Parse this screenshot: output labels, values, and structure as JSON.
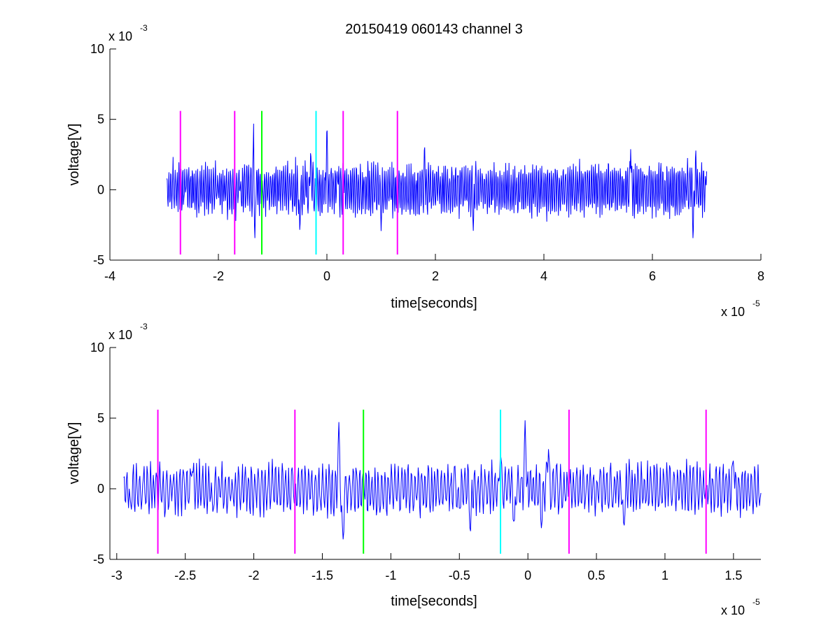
{
  "title": "20150419 060143 channel 3",
  "colors": {
    "signal": "#0000ff",
    "magenta": "#ff00ff",
    "green": "#00ff00",
    "cyan": "#00ffff",
    "axis": "#000000"
  },
  "chart_data": [
    {
      "type": "line",
      "title": "20150419 060143 channel 3",
      "xlabel": "time[seconds]",
      "ylabel": "voltage[V]",
      "x_exponent_label": "x 10",
      "x_exponent": "-5",
      "y_exponent_label": "x 10",
      "y_exponent": "-3",
      "xlim": [
        -4e-05,
        8e-05
      ],
      "ylim": [
        -0.005,
        0.01
      ],
      "xticks": [
        -4e-05,
        -2e-05,
        0,
        2e-05,
        4e-05,
        6e-05,
        8e-05
      ],
      "xtick_labels": [
        "-4",
        "-2",
        "0",
        "2",
        "4",
        "6",
        "8"
      ],
      "yticks": [
        -0.005,
        0,
        0.005,
        0.01
      ],
      "ytick_labels": [
        "-5",
        "0",
        "5",
        "10"
      ],
      "grid": false,
      "series": [
        {
          "color": "#0000ff",
          "x_range": [
            -2.95e-05,
            7e-05
          ],
          "description_points": [
            [
              -2.95e-05,
              0.0008
            ],
            [
              -2.6e-05,
              0.0001
            ],
            [
              -2e-05,
              -0.0002
            ],
            [
              -1.6e-05,
              0.0001
            ],
            [
              -1.35e-05,
              0.0048
            ],
            [
              -1.33e-05,
              -0.0042
            ],
            [
              -1.2e-05,
              -0.0001
            ],
            [
              -5e-06,
              -0.003
            ],
            [
              -3e-06,
              0.003
            ],
            [
              0,
              0.005
            ],
            [
              2e-06,
              0.001
            ],
            [
              3e-06,
              0.002
            ],
            [
              1e-05,
              -0.003
            ],
            [
              1.8e-05,
              0.0034
            ],
            [
              2.7e-05,
              -0.0031
            ],
            [
              5.6e-05,
              0.003
            ],
            [
              6.75e-05,
              -0.0037
            ],
            [
              6.8e-05,
              0.0029
            ],
            [
              7e-05,
              0.0013
            ]
          ]
        }
      ],
      "vlines": [
        {
          "x": -2.7e-05,
          "color": "#ff00ff",
          "ymin": -0.0046,
          "ymax": 0.0056
        },
        {
          "x": -1.7e-05,
          "color": "#ff00ff",
          "ymin": -0.0046,
          "ymax": 0.0056
        },
        {
          "x": -1.2e-05,
          "color": "#00ff00",
          "ymin": -0.0046,
          "ymax": 0.0056
        },
        {
          "x": -2e-06,
          "color": "#00ffff",
          "ymin": -0.0046,
          "ymax": 0.0056
        },
        {
          "x": 3e-06,
          "color": "#ff00ff",
          "ymin": -0.0046,
          "ymax": 0.0056
        },
        {
          "x": 1.3e-05,
          "color": "#ff00ff",
          "ymin": -0.0046,
          "ymax": 0.0056
        }
      ]
    },
    {
      "type": "line",
      "title": "",
      "xlabel": "time[seconds]",
      "ylabel": "voltage[V]",
      "x_exponent_label": "x 10",
      "x_exponent": "-5",
      "y_exponent_label": "x 10",
      "y_exponent": "-3",
      "xlim": [
        -3.05e-05,
        1.7e-05
      ],
      "ylim": [
        -0.005,
        0.01
      ],
      "xticks": [
        -3e-05,
        -2.5e-05,
        -2e-05,
        -1.5e-05,
        -1e-05,
        -5e-06,
        0,
        5e-06,
        1e-05,
        1.5e-05
      ],
      "xtick_labels": [
        "-3",
        "-2.5",
        "-2",
        "-1.5",
        "-1",
        "-0.5",
        "0",
        "0.5",
        "1",
        "1.5"
      ],
      "yticks": [
        -0.005,
        0,
        0.005,
        0.01
      ],
      "ytick_labels": [
        "-5",
        "0",
        "5",
        "10"
      ],
      "grid": false,
      "series": [
        {
          "color": "#0000ff",
          "x_range": [
            -2.95e-05,
            1.7e-05
          ],
          "description_points": [
            [
              -2.95e-05,
              0.0008
            ],
            [
              -2.9e-05,
              -0.0012
            ],
            [
              -2.45e-05,
              0.0015
            ],
            [
              -2.3e-05,
              -0.0017
            ],
            [
              -1.7e-05,
              -0.0008
            ],
            [
              -1.38e-05,
              0.0049
            ],
            [
              -1.35e-05,
              -0.0041
            ],
            [
              -1.2e-05,
              0.001
            ],
            [
              -5e-06,
              -0.0015
            ],
            [
              -4.2e-06,
              -0.0034
            ],
            [
              -2e-06,
              0.003
            ],
            [
              -1e-06,
              -0.003
            ],
            [
              -2e-07,
              0.005
            ],
            [
              1e-06,
              -0.003
            ],
            [
              1.5e-06,
              0.0028
            ],
            [
              3e-06,
              0.0002
            ],
            [
              7e-06,
              -0.0032
            ],
            [
              1.3e-05,
              -0.0001
            ],
            [
              1.5e-05,
              0.0023
            ],
            [
              1.7e-05,
              -0.0003
            ]
          ]
        }
      ],
      "vlines": [
        {
          "x": -2.7e-05,
          "color": "#ff00ff",
          "ymin": -0.0046,
          "ymax": 0.0056
        },
        {
          "x": -1.7e-05,
          "color": "#ff00ff",
          "ymin": -0.0046,
          "ymax": 0.0056
        },
        {
          "x": -1.2e-05,
          "color": "#00ff00",
          "ymin": -0.0046,
          "ymax": 0.0056
        },
        {
          "x": -2e-06,
          "color": "#00ffff",
          "ymin": -0.0046,
          "ymax": 0.0056
        },
        {
          "x": 3e-06,
          "color": "#ff00ff",
          "ymin": -0.0046,
          "ymax": 0.0056
        },
        {
          "x": 1.3e-05,
          "color": "#ff00ff",
          "ymin": -0.0046,
          "ymax": 0.0056
        }
      ]
    }
  ]
}
